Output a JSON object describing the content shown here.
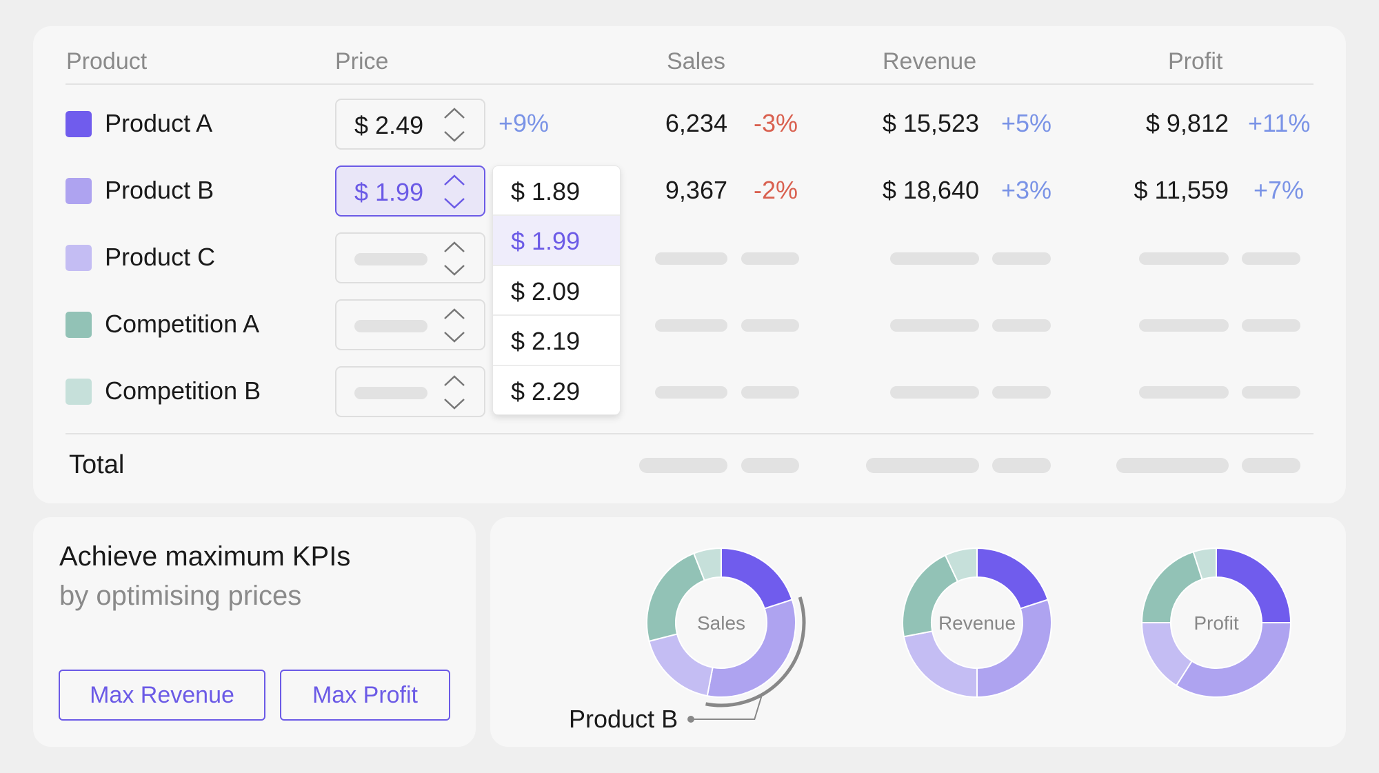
{
  "table": {
    "headers": {
      "product": "Product",
      "price": "Price",
      "sales": "Sales",
      "revenue": "Revenue",
      "profit": "Profit"
    },
    "rows": [
      {
        "name": "Product A",
        "color": "#705ced",
        "price": "$ 2.49",
        "price_change": "+9%",
        "sales": "6,234",
        "sales_change": "-3%",
        "revenue": "$ 15,523",
        "revenue_change": "+5%",
        "profit": "$ 9,812",
        "profit_change": "+11%"
      },
      {
        "name": "Product B",
        "color": "#aea3f0",
        "price": "$ 1.99",
        "price_change": "",
        "sales": "9,367",
        "sales_change": "-2%",
        "revenue": "$ 18,640",
        "revenue_change": "+3%",
        "profit": "$ 11,559",
        "profit_change": "+7%"
      },
      {
        "name": "Product C",
        "color": "#c4bdf3"
      },
      {
        "name": "Competition A",
        "color": "#92c2b6"
      },
      {
        "name": "Competition B",
        "color": "#c6e0da"
      }
    ],
    "total_label": "Total",
    "price_options": [
      "$ 1.89",
      "$ 1.99",
      "$ 2.09",
      "$ 2.19",
      "$ 2.29"
    ],
    "selected_option": "$ 1.99",
    "colors": {
      "accent": "#6b5ae6",
      "positive": "#7a93e6",
      "negative": "#d9604f"
    }
  },
  "promo": {
    "title": "Achieve maximum KPIs",
    "subtitle": "by optimising prices",
    "max_revenue": "Max Revenue",
    "max_profit": "Max Profit"
  },
  "charts": {
    "callout": "Product B",
    "donuts": [
      {
        "label": "Sales",
        "shares": [
          20,
          33,
          18,
          23,
          6
        ]
      },
      {
        "label": "Revenue",
        "shares": [
          20,
          30,
          22,
          21,
          7
        ]
      },
      {
        "label": "Profit",
        "shares": [
          25,
          34,
          16,
          20,
          5
        ]
      }
    ]
  }
}
